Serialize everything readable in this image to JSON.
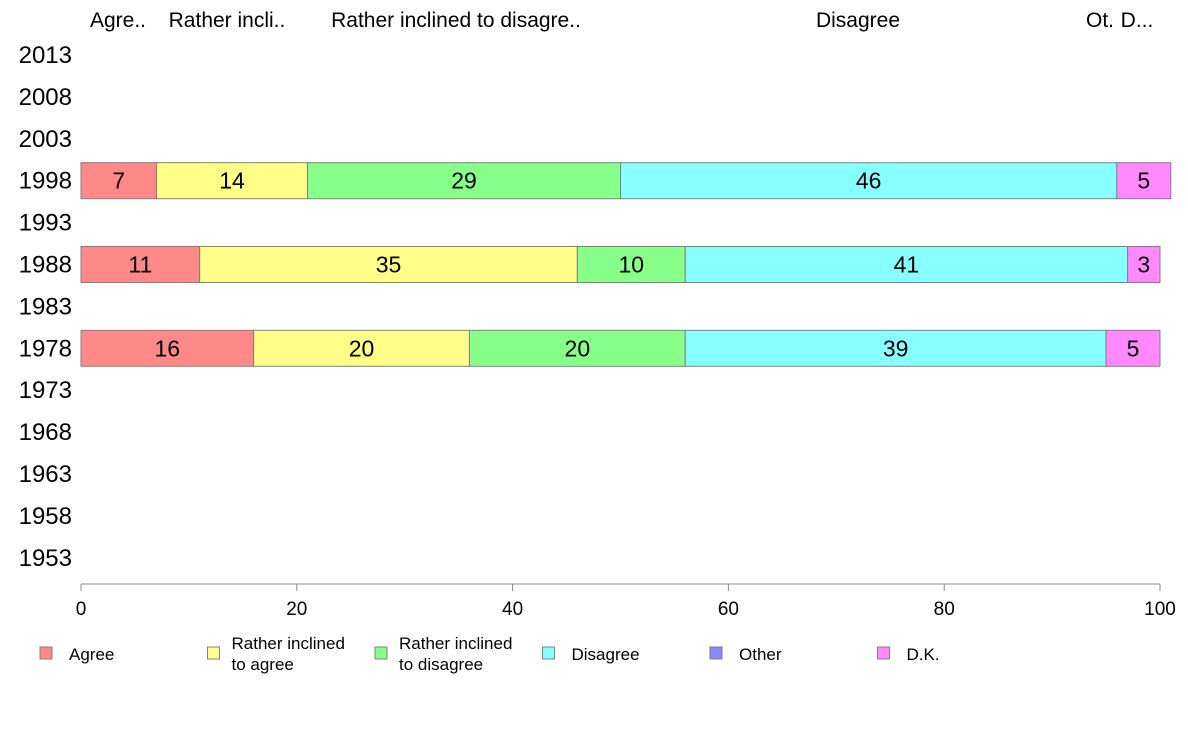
{
  "chart_data": {
    "type": "bar",
    "orientation": "horizontal",
    "stacked": true,
    "categories": [
      "2013",
      "2008",
      "2003",
      "1998",
      "1993",
      "1988",
      "1983",
      "1978",
      "1973",
      "1968",
      "1963",
      "1958",
      "1953"
    ],
    "series": [
      {
        "name": "Agree",
        "color": "#ff8888",
        "values": [
          null,
          null,
          null,
          7,
          null,
          11,
          null,
          16,
          null,
          null,
          null,
          null,
          null
        ]
      },
      {
        "name": "Rather inclined to agree",
        "color": "#ffff88",
        "values": [
          null,
          null,
          null,
          14,
          null,
          35,
          null,
          20,
          null,
          null,
          null,
          null,
          null
        ]
      },
      {
        "name": "Rather inclined to disagree",
        "color": "#88ff88",
        "values": [
          null,
          null,
          null,
          29,
          null,
          10,
          null,
          20,
          null,
          null,
          null,
          null,
          null
        ]
      },
      {
        "name": "Disagree",
        "color": "#88ffff",
        "values": [
          null,
          null,
          null,
          46,
          null,
          41,
          null,
          39,
          null,
          null,
          null,
          null,
          null
        ]
      },
      {
        "name": "Other",
        "color": "#8888ff",
        "values": [
          null,
          null,
          null,
          0,
          null,
          0,
          null,
          0,
          null,
          null,
          null,
          null,
          null
        ]
      },
      {
        "name": "D.K.",
        "color": "#ff88ff",
        "values": [
          null,
          null,
          null,
          5,
          null,
          3,
          null,
          5,
          null,
          null,
          null,
          null,
          null
        ]
      }
    ],
    "xlim": [
      0,
      100
    ],
    "xticks": [
      "0",
      "20",
      "40",
      "60",
      "80",
      "100"
    ],
    "column_headers": [
      "Agre..",
      "Rather incli..",
      "Rather inclined to disagre..",
      "Disagree",
      "Ot.",
      "D..."
    ],
    "legend": {
      "position": "bottom",
      "items": [
        {
          "lines": [
            "Agree"
          ],
          "color": "#ff8888"
        },
        {
          "lines": [
            "Rather inclined",
            "to agree"
          ],
          "color": "#ffff88"
        },
        {
          "lines": [
            "Rather inclined",
            "to disagree"
          ],
          "color": "#88ff88"
        },
        {
          "lines": [
            "Disagree"
          ],
          "color": "#88ffff"
        },
        {
          "lines": [
            "Other"
          ],
          "color": "#8888ff"
        },
        {
          "lines": [
            "D.K."
          ],
          "color": "#ff88ff"
        }
      ]
    },
    "grid": false
  }
}
